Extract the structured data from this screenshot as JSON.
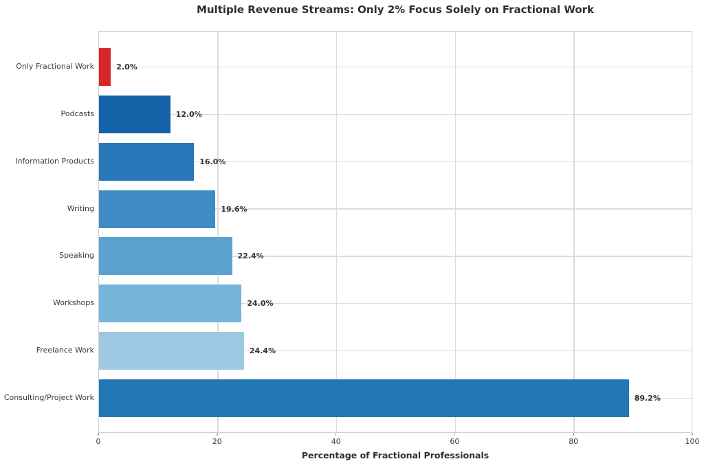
{
  "figure": {
    "title": "Multiple Revenue Streams: Only 2% Focus Solely on Fractional Work",
    "xlabel": "Percentage of Fractional Professionals"
  },
  "chart_data": {
    "type": "bar",
    "orientation": "horizontal",
    "title": "Multiple Revenue Streams: Only 2% Focus Solely on Fractional Work",
    "xlabel": "Percentage of Fractional Professionals",
    "ylabel": "",
    "xlim": [
      0,
      100
    ],
    "xticks": [
      0,
      20,
      40,
      60,
      80,
      100
    ],
    "grid": true,
    "legend": false,
    "categories": [
      "Only Fractional Work",
      "Podcasts",
      "Information Products",
      "Writing",
      "Speaking",
      "Workshops",
      "Freelance Work",
      "Consulting/Project Work"
    ],
    "values": [
      2.0,
      12.0,
      16.0,
      19.6,
      22.4,
      24.0,
      24.4,
      89.2
    ],
    "value_labels": [
      "2.0%",
      "12.0%",
      "16.0%",
      "19.6%",
      "22.4%",
      "24.0%",
      "24.4%",
      "89.2%"
    ],
    "bar_colors": [
      "#d62728",
      "#1562a9",
      "#2977b8",
      "#3f8cc4",
      "#5aa2d0",
      "#76b4d9",
      "#9cc9e1",
      "#2277b4"
    ],
    "highlight_color": "#d62728",
    "gridline_color": "#dcdcdc",
    "spine_color": "#cdcdcd",
    "text_color": "#333333",
    "background_color": "#ffffff"
  }
}
